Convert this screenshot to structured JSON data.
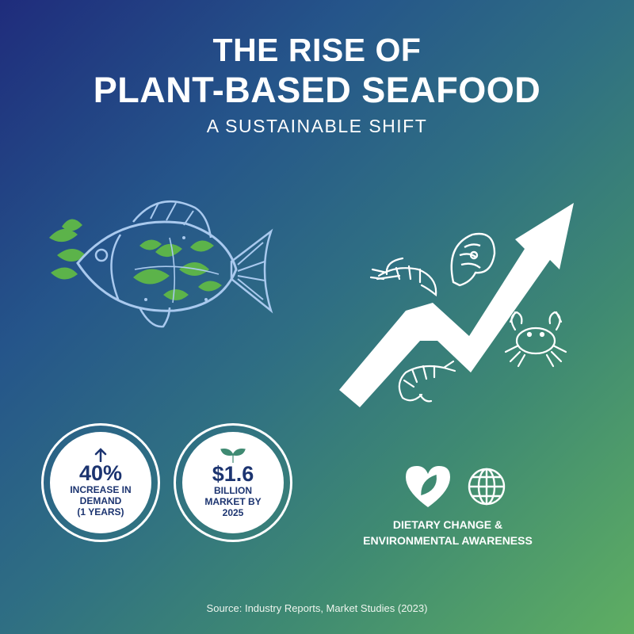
{
  "title": {
    "line1": "THE RISE OF",
    "line2": "PLANT-BASED SEAFOOD",
    "subtitle": "A SUSTAINABLE SHIFT"
  },
  "illustrations": {
    "fish": "leafy-fish-icon",
    "trend": "upward-arrow-icon",
    "seafood": [
      "shrimp-icon",
      "salmon-steak-icon",
      "crab-icon",
      "shrimp-icon"
    ]
  },
  "stats": [
    {
      "icon": "up-arrow-icon",
      "value": "40%",
      "label": [
        "INCREASE IN",
        "DEMAND",
        "(1 YEARS)"
      ]
    },
    {
      "icon": "sprout-icon",
      "value": "$1.6",
      "label": [
        "BILLION",
        "MARKET BY",
        "2025"
      ]
    }
  ],
  "drivers": {
    "icons": [
      "heart-leaf-icon",
      "globe-icon"
    ],
    "label_line1": "DIETARY CHANGE &",
    "label_line2": "ENVIRONMENTAL AWARENESS"
  },
  "source": "Source: Industry Reports, Market Studies (2023)",
  "colors": {
    "gradient_start": "#1f2c7c",
    "gradient_end": "#5fae62",
    "leaf_green": "#5cb34a",
    "outline_blue": "#a9c9ee",
    "stat_text": "#1c3470"
  }
}
